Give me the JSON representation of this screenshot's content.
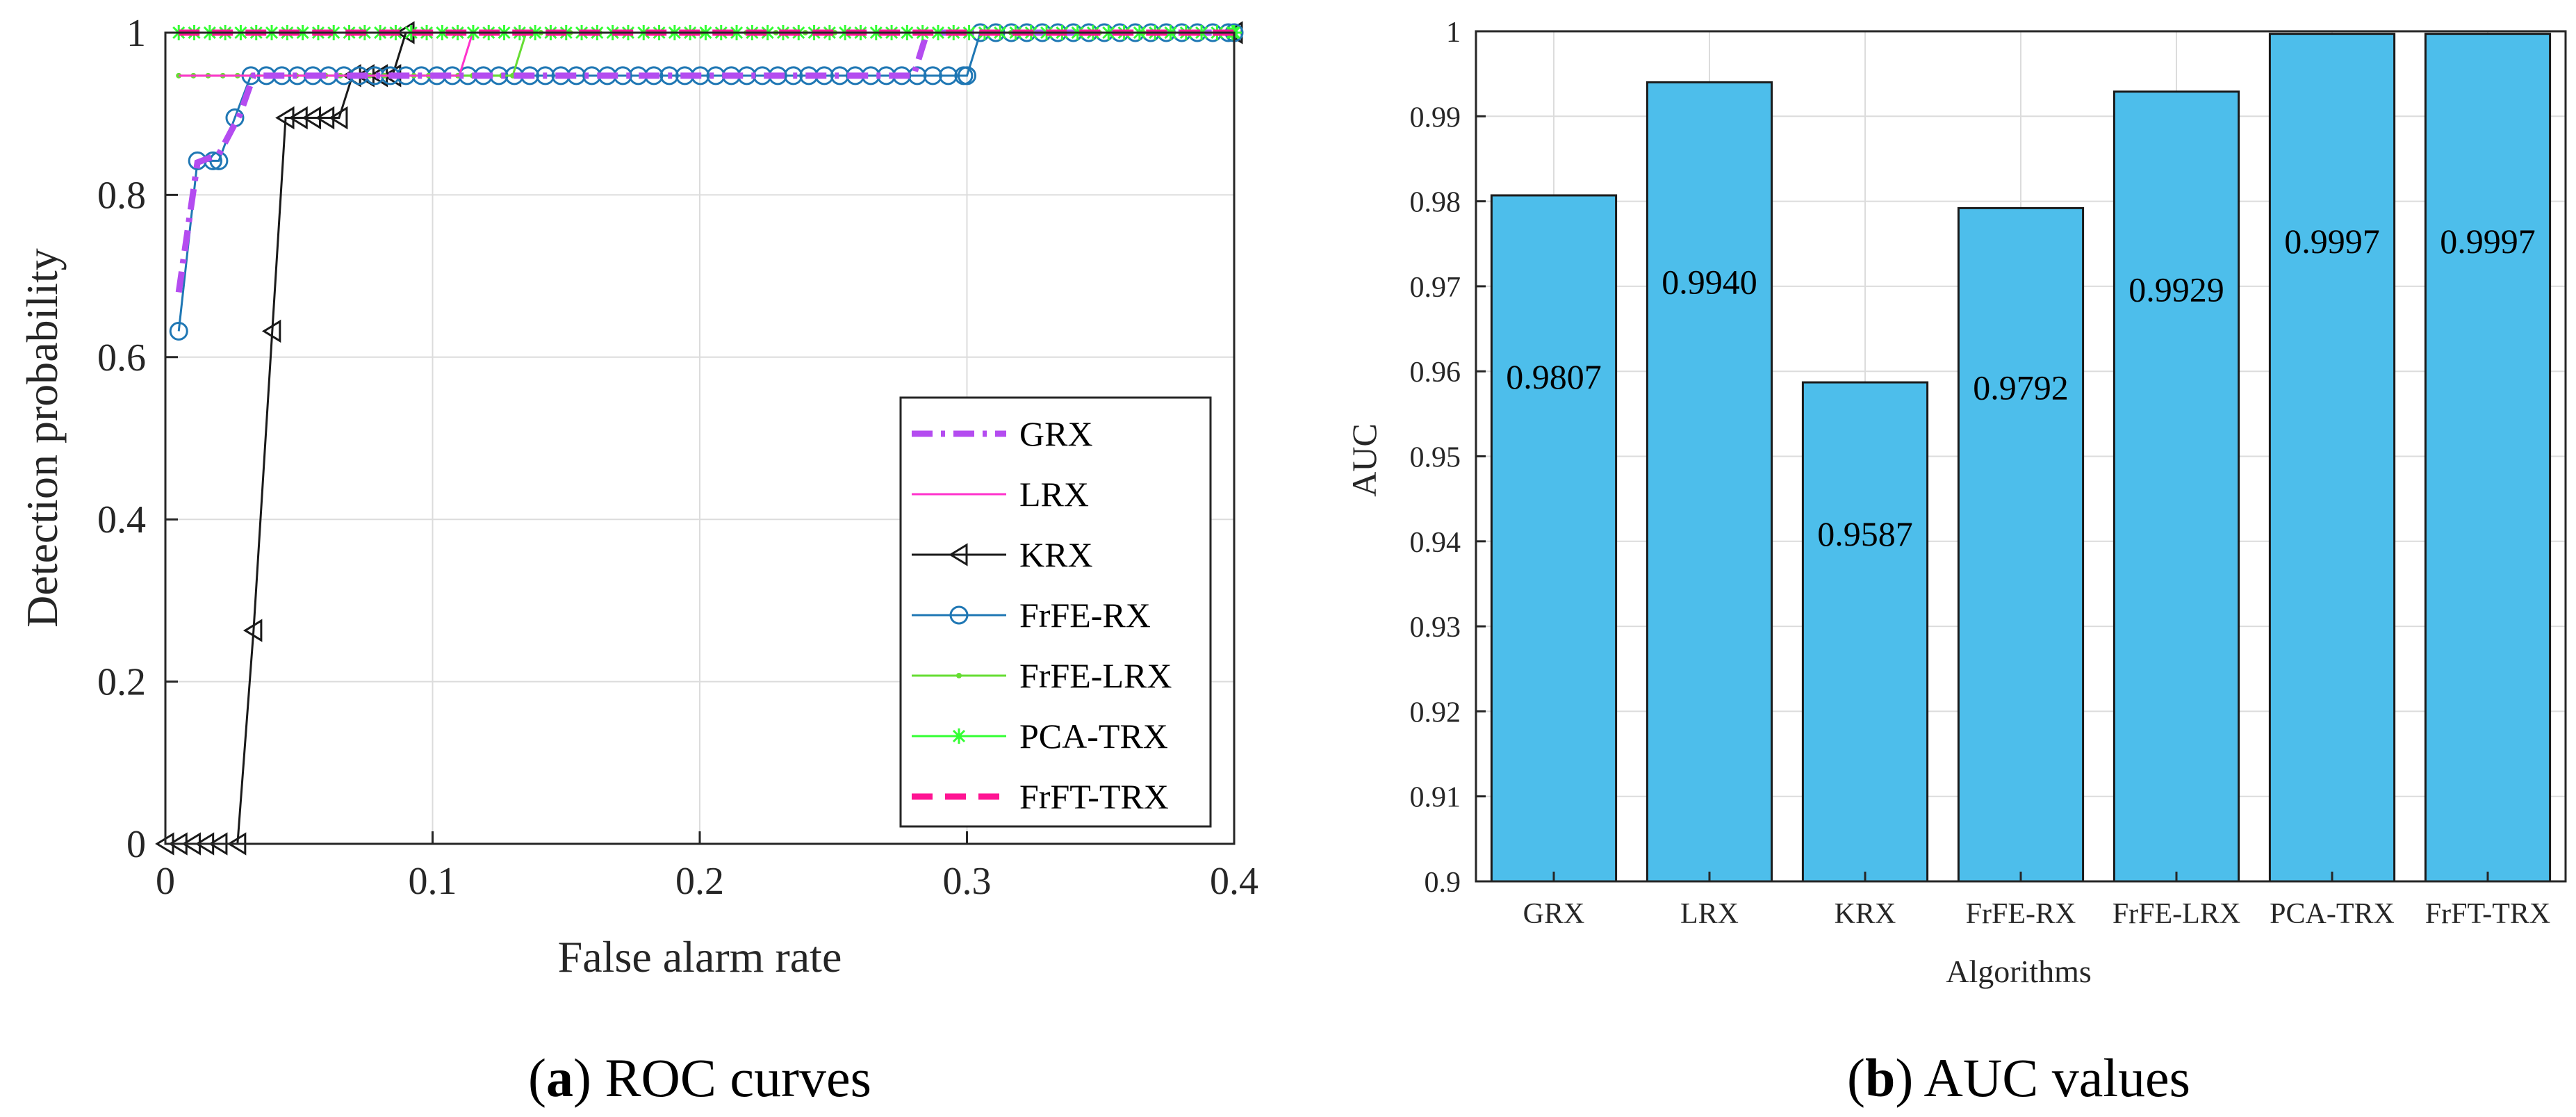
{
  "chart_data": [
    {
      "type": "line",
      "xlabel": "False alarm rate",
      "ylabel": "Detection probability",
      "xlim": [
        0,
        0.4
      ],
      "ylim": [
        0,
        1
      ],
      "xticks": [
        "0",
        "0.1",
        "0.2",
        "0.3",
        "0.4"
      ],
      "yticks": [
        "0",
        "0.2",
        "0.4",
        "0.6",
        "0.8",
        "1"
      ],
      "grid": true,
      "legend_position": "bottom-right",
      "caption_bold": "a",
      "caption_rest": ") ROC curves",
      "series": [
        {
          "name": "GRX",
          "color": "#b44cf0",
          "style": "dash-dot",
          "marker": "none",
          "points": [
            [
              0.005,
              0.68
            ],
            [
              0.012,
              0.84
            ],
            [
              0.02,
              0.85
            ],
            [
              0.028,
              0.9
            ],
            [
              0.033,
              0.947
            ],
            [
              0.28,
              0.947
            ],
            [
              0.285,
              1.0
            ],
            [
              0.4,
              1.0
            ]
          ]
        },
        {
          "name": "LRX",
          "color": "#ff33cc",
          "style": "solid",
          "marker": "none",
          "points": [
            [
              0.005,
              0.947
            ],
            [
              0.11,
              0.947
            ],
            [
              0.115,
              1.0
            ],
            [
              0.4,
              1.0
            ]
          ]
        },
        {
          "name": "KRX",
          "color": "#1a1a1a",
          "style": "solid",
          "marker": "triangle-left",
          "points": [
            [
              0.0,
              0.0
            ],
            [
              0.005,
              0.0
            ],
            [
              0.01,
              0.0
            ],
            [
              0.015,
              0.0
            ],
            [
              0.02,
              0.0
            ],
            [
              0.027,
              0.0
            ],
            [
              0.033,
              0.263
            ],
            [
              0.04,
              0.632
            ],
            [
              0.045,
              0.895
            ],
            [
              0.05,
              0.895
            ],
            [
              0.055,
              0.895
            ],
            [
              0.06,
              0.895
            ],
            [
              0.065,
              0.895
            ],
            [
              0.07,
              0.947
            ],
            [
              0.075,
              0.947
            ],
            [
              0.08,
              0.947
            ],
            [
              0.085,
              0.947
            ],
            [
              0.09,
              1.0
            ],
            [
              0.4,
              1.0
            ]
          ]
        },
        {
          "name": "FrFE-RX",
          "color": "#1f77b4",
          "style": "solid",
          "marker": "circle",
          "points": [
            [
              0.005,
              0.632
            ],
            [
              0.012,
              0.842
            ],
            [
              0.02,
              0.842
            ],
            [
              0.026,
              0.895
            ],
            [
              0.032,
              0.947
            ],
            [
              0.3,
              0.947
            ],
            [
              0.305,
              1.0
            ],
            [
              0.4,
              1.0
            ]
          ]
        },
        {
          "name": "FrFE-LRX",
          "color": "#66dd33",
          "style": "solid",
          "marker": "dot",
          "points": [
            [
              0.005,
              0.947
            ],
            [
              0.13,
              0.947
            ],
            [
              0.135,
              1.0
            ],
            [
              0.4,
              1.0
            ]
          ]
        },
        {
          "name": "PCA-TRX",
          "color": "#33ff33",
          "style": "solid",
          "marker": "asterisk",
          "points": [
            [
              0.005,
              1.0
            ],
            [
              0.4,
              1.0
            ]
          ]
        },
        {
          "name": "FrFT-TRX",
          "color": "#ff1493",
          "style": "dashed",
          "marker": "none",
          "points": [
            [
              0.005,
              1.0
            ],
            [
              0.4,
              1.0
            ]
          ]
        }
      ]
    },
    {
      "type": "bar",
      "xlabel": "Algorithms",
      "ylabel": "AUC",
      "ylim": [
        0.9,
        1.0
      ],
      "yticks": [
        "0.9",
        "0.91",
        "0.92",
        "0.93",
        "0.94",
        "0.95",
        "0.96",
        "0.97",
        "0.98",
        "0.99",
        "1"
      ],
      "grid": true,
      "bar_color": "#4dbeeb",
      "caption_bold": "b",
      "caption_rest": ") AUC values",
      "categories": [
        "GRX",
        "LRX",
        "KRX",
        "FrFE-RX",
        "FrFE-LRX",
        "PCA-TRX",
        "FrFT-TRX"
      ],
      "values": [
        0.9807,
        0.994,
        0.9587,
        0.9792,
        0.9929,
        0.9997,
        0.9997
      ],
      "labels": [
        "0.9807",
        "0.9940",
        "0.9587",
        "0.9792",
        "0.9929",
        "0.9997",
        "0.9997"
      ]
    }
  ]
}
